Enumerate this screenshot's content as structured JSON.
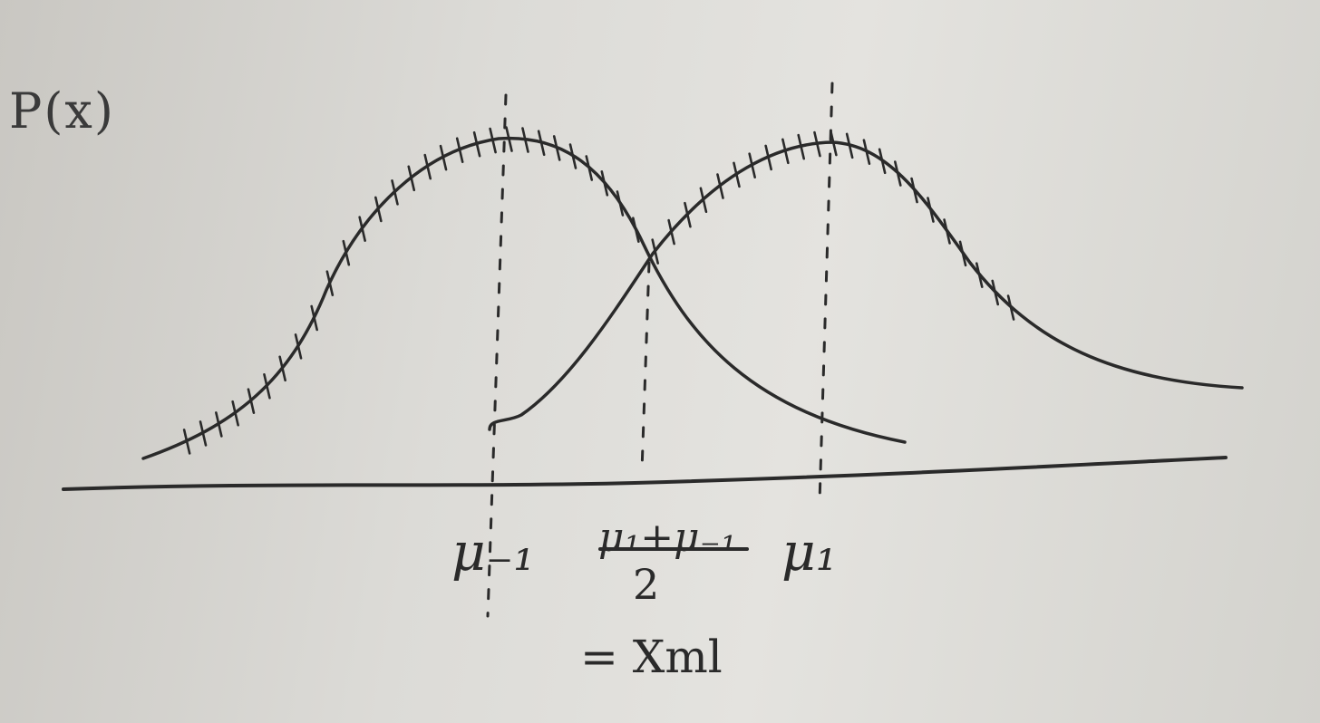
{
  "diagram": {
    "y_axis_label": "P(x)",
    "labels": {
      "mu_neg": "μ₋₁",
      "midpoint_numerator": "μ₁+μ₋₁",
      "midpoint_denominator": "2",
      "mu_pos": "μ₁",
      "equals_xml": "= Xml"
    }
  }
}
